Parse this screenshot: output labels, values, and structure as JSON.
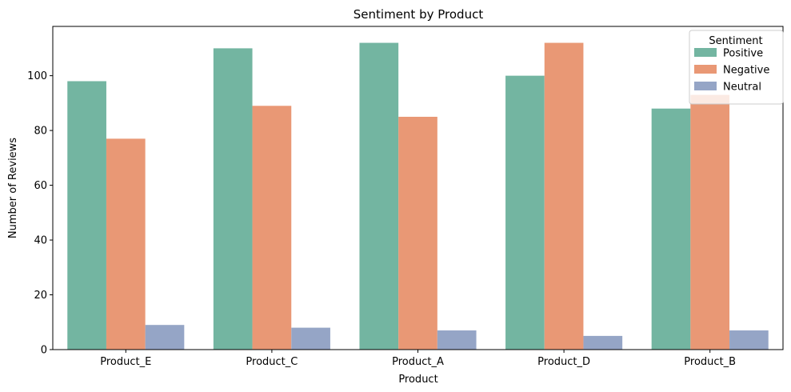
{
  "chart_data": {
    "type": "bar",
    "title": "Sentiment by Product",
    "xlabel": "Product",
    "ylabel": "Number of Reviews",
    "categories": [
      "Product_E",
      "Product_C",
      "Product_A",
      "Product_D",
      "Product_B"
    ],
    "series": [
      {
        "name": "Positive",
        "color": "#73b5a1",
        "values": [
          98,
          110,
          112,
          100,
          88
        ]
      },
      {
        "name": "Negative",
        "color": "#e99875",
        "values": [
          77,
          89,
          85,
          112,
          93
        ]
      },
      {
        "name": "Neutral",
        "color": "#95a5c6",
        "values": [
          9,
          8,
          7,
          5,
          7
        ]
      }
    ],
    "ylim": [
      0,
      118
    ],
    "yticks": [
      0,
      20,
      40,
      60,
      80,
      100
    ],
    "grid": false,
    "legend": {
      "title": "Sentiment",
      "placement": "top-right"
    }
  }
}
